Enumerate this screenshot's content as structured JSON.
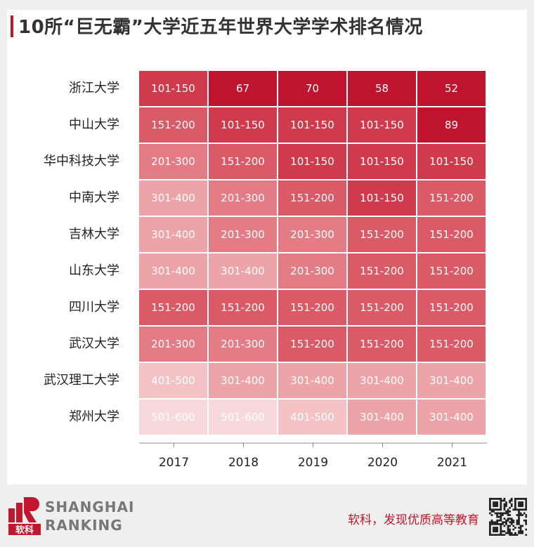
{
  "title": "10所“巨无霸”大学近五年世界大学学术排名情况",
  "chart_data": {
    "type": "heatmap",
    "title": "10所“巨无霸”大学近五年世界大学学术排名情况",
    "x": [
      "2017",
      "2018",
      "2019",
      "2020",
      "2021"
    ],
    "y": [
      "浙江大学",
      "中山大学",
      "华中科技大学",
      "中南大学",
      "吉林大学",
      "山东大学",
      "四川大学",
      "武汉大学",
      "武汉理工大学",
      "郑州大学"
    ],
    "values": [
      [
        "101-150",
        "67",
        "70",
        "58",
        "52"
      ],
      [
        "151-200",
        "101-150",
        "101-150",
        "101-150",
        "89"
      ],
      [
        "201-300",
        "151-200",
        "101-150",
        "101-150",
        "101-150"
      ],
      [
        "301-400",
        "201-300",
        "151-200",
        "101-150",
        "151-200"
      ],
      [
        "301-400",
        "201-300",
        "201-300",
        "151-200",
        "151-200"
      ],
      [
        "301-400",
        "301-400",
        "201-300",
        "151-200",
        "151-200"
      ],
      [
        "151-200",
        "151-200",
        "151-200",
        "151-200",
        "151-200"
      ],
      [
        "201-300",
        "201-300",
        "151-200",
        "151-200",
        "151-200"
      ],
      [
        "401-500",
        "301-400",
        "301-400",
        "301-400",
        "301-400"
      ],
      [
        "501-600",
        "501-600",
        "401-500",
        "301-400",
        "301-400"
      ]
    ],
    "color_scale": {
      "top_100": "#bf1330",
      "101-150": "#cf3b4c",
      "151-200": "#da5a67",
      "201-300": "#e47c85",
      "301-400": "#eda4a9",
      "401-500": "#f3c2c5",
      "501-600": "#f7d9da"
    },
    "grid": true
  },
  "footer": {
    "logo_line1": "SHANGHAI",
    "logo_line2": "RANKING",
    "logo_mark": "软科",
    "slogan": "软科，发现优质高等教育"
  },
  "colors": {
    "accent": "#c3162c",
    "background": "#efefef",
    "card": "#ffffff"
  }
}
